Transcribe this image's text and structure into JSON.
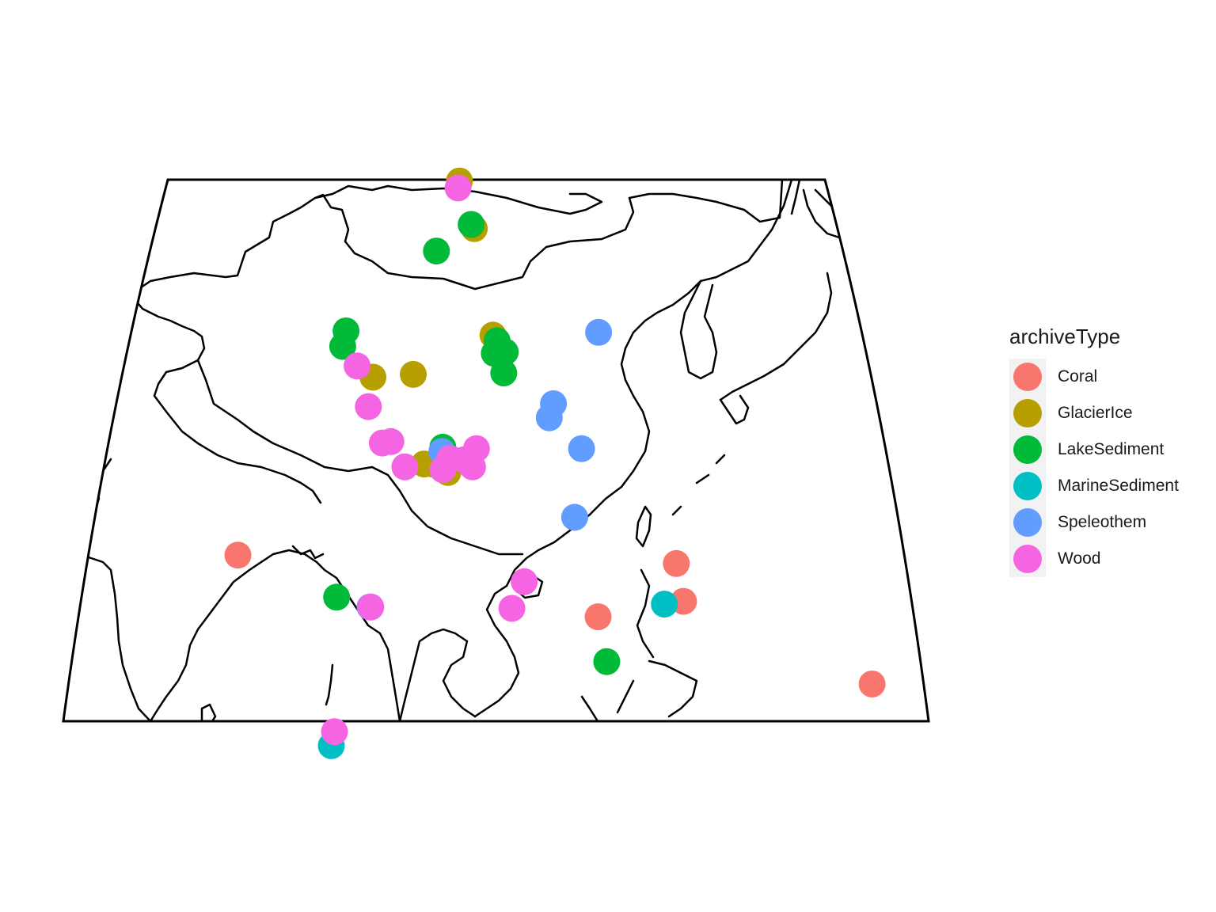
{
  "legend": {
    "title": "archiveType",
    "items": [
      {
        "label": "Coral",
        "color": "#F8766D"
      },
      {
        "label": "GlacierIce",
        "color": "#B79F00"
      },
      {
        "label": "LakeSediment",
        "color": "#00BA38"
      },
      {
        "label": "MarineSediment",
        "color": "#00BFC4"
      },
      {
        "label": "Speleothem",
        "color": "#619CFF"
      },
      {
        "label": "Wood",
        "color": "#F564E3"
      }
    ]
  },
  "chart_data": {
    "type": "scatter",
    "title": "",
    "xlabel": "",
    "ylabel": "",
    "grid": false,
    "legend_position": "right",
    "series": [
      {
        "name": "Coral",
        "points": [
          [
            58.5,
            22.6
          ],
          [
            109.8,
            18.2
          ],
          [
            121.3,
            22.0
          ],
          [
            121.8,
            19.3
          ],
          [
            145.7,
            13.4
          ]
        ]
      },
      {
        "name": "GlacierIce",
        "points": [
          [
            87.2,
            49.3
          ],
          [
            90.4,
            45.9
          ],
          [
            94.3,
            38.3
          ],
          [
            75.0,
            35.3
          ],
          [
            81.5,
            35.5
          ],
          [
            84.3,
            29.1
          ],
          [
            88.0,
            28.5
          ],
          [
            85.6,
            29.1
          ]
        ]
      },
      {
        "name": "LakeSediment",
        "points": [
          [
            89.8,
            46.2
          ],
          [
            83.8,
            44.3
          ],
          [
            69.6,
            38.6
          ],
          [
            69.4,
            37.5
          ],
          [
            95.0,
            37.9
          ],
          [
            94.6,
            37.0
          ],
          [
            96.4,
            37.1
          ],
          [
            96.2,
            35.6
          ],
          [
            87.0,
            30.3
          ],
          [
            73.4,
            19.6
          ],
          [
            110.7,
            15.0
          ]
        ]
      },
      {
        "name": "MarineSediment",
        "points": [
          [
            119.1,
            19.1
          ],
          [
            75.0,
            9.0
          ]
        ]
      },
      {
        "name": "Speleothem",
        "points": [
          [
            112.0,
            38.5
          ],
          [
            104.2,
            33.4
          ],
          [
            103.5,
            32.4
          ],
          [
            108.4,
            30.2
          ],
          [
            107.0,
            25.3
          ],
          [
            86.9,
            30.0
          ],
          [
            78.2,
            18.9
          ]
        ]
      },
      {
        "name": "Wood",
        "points": [
          [
            87.0,
            48.8
          ],
          [
            72.2,
            36.1
          ],
          [
            74.8,
            33.2
          ],
          [
            77.6,
            30.6
          ],
          [
            78.9,
            30.7
          ],
          [
            81.4,
            28.9
          ],
          [
            87.2,
            28.7
          ],
          [
            88.2,
            29.5
          ],
          [
            90.4,
            29.4
          ],
          [
            92.2,
            30.2
          ],
          [
            91.7,
            28.9
          ],
          [
            78.3,
            18.9
          ],
          [
            99.6,
            20.7
          ],
          [
            97.9,
            18.8
          ],
          [
            75.2,
            10.0
          ]
        ]
      }
    ]
  }
}
